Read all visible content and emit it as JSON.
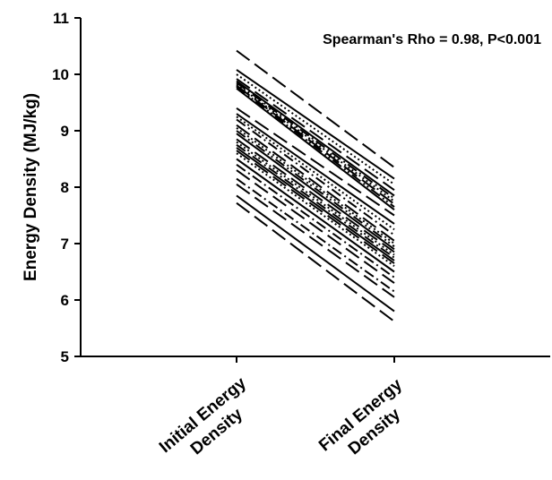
{
  "chart_data": {
    "type": "line",
    "title": "",
    "ylabel": "Energy Density (MJ/kg)",
    "xlabel": "",
    "categories": [
      "Initial Energy Density",
      "Final Energy Density"
    ],
    "category_lines": [
      [
        "Initial Energy",
        "Density"
      ],
      [
        "Final Energy",
        "Density"
      ]
    ],
    "ylim": [
      5,
      11
    ],
    "yticks": [
      5,
      6,
      7,
      8,
      9,
      10,
      11
    ],
    "annotation": "Spearman's Rho = 0.98, P<0.001",
    "grid": false,
    "legend": "none",
    "line_color": "#000000",
    "series": [
      {
        "values": [
          10.42,
          8.35
        ],
        "dash": "long-dash"
      },
      {
        "values": [
          10.08,
          8.15
        ],
        "dash": "solid"
      },
      {
        "values": [
          10.0,
          8.05
        ],
        "dash": "dotted"
      },
      {
        "values": [
          9.92,
          7.95
        ],
        "dash": "long-dash"
      },
      {
        "values": [
          9.88,
          7.85
        ],
        "dash": "solid"
      },
      {
        "values": [
          9.85,
          7.8
        ],
        "dash": "dash-dot"
      },
      {
        "values": [
          9.82,
          7.75
        ],
        "dash": "dotted"
      },
      {
        "values": [
          9.8,
          7.7
        ],
        "dash": "long-dash"
      },
      {
        "values": [
          9.78,
          7.65
        ],
        "dash": "dash-dot-dot"
      },
      {
        "values": [
          9.75,
          7.6
        ],
        "dash": "solid"
      },
      {
        "values": [
          9.4,
          7.5
        ],
        "dash": "long-dash"
      },
      {
        "values": [
          9.3,
          7.35
        ],
        "dash": "solid"
      },
      {
        "values": [
          9.25,
          7.25
        ],
        "dash": "dotted"
      },
      {
        "values": [
          9.2,
          7.15
        ],
        "dash": "dash-dot"
      },
      {
        "values": [
          9.1,
          7.05
        ],
        "dash": "long-dash"
      },
      {
        "values": [
          9.05,
          7.0
        ],
        "dash": "dotted"
      },
      {
        "values": [
          9.0,
          6.95
        ],
        "dash": "dash-dot-dot"
      },
      {
        "values": [
          8.95,
          6.9
        ],
        "dash": "solid"
      },
      {
        "values": [
          8.85,
          6.85
        ],
        "dash": "long-dash"
      },
      {
        "values": [
          8.8,
          6.8
        ],
        "dash": "dotted"
      },
      {
        "values": [
          8.75,
          6.75
        ],
        "dash": "dash-dot"
      },
      {
        "values": [
          8.7,
          6.7
        ],
        "dash": "solid"
      },
      {
        "values": [
          8.65,
          6.65
        ],
        "dash": "long-dash"
      },
      {
        "values": [
          8.6,
          6.6
        ],
        "dash": "dotted"
      },
      {
        "values": [
          8.5,
          6.5
        ],
        "dash": "solid"
      },
      {
        "values": [
          8.4,
          6.4
        ],
        "dash": "dash-dot"
      },
      {
        "values": [
          8.3,
          6.3
        ],
        "dash": "long-dash"
      },
      {
        "values": [
          8.15,
          6.15
        ],
        "dash": "dash-dot"
      },
      {
        "values": [
          8.05,
          6.05
        ],
        "dash": "long-dash"
      },
      {
        "values": [
          7.85,
          5.8
        ],
        "dash": "solid"
      },
      {
        "values": [
          7.72,
          5.62
        ],
        "dash": "long-dash"
      }
    ]
  }
}
